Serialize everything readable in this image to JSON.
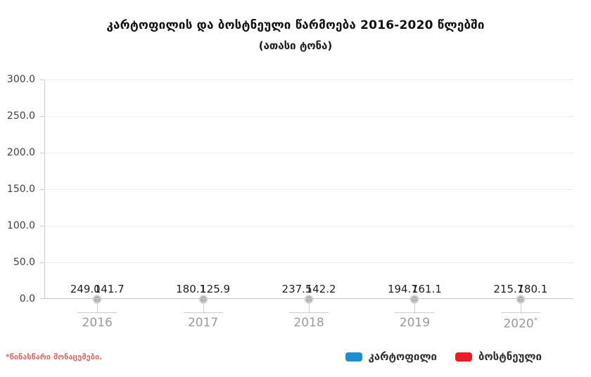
{
  "chart_data": {
    "type": "bar",
    "title": "კარტოფილის და ბოსტნეული წარმოება 2016-2020 წლებში",
    "subtitle": "(ათასი ტონა)",
    "categories": [
      "2016",
      "2017",
      "2018",
      "2019",
      "2020*"
    ],
    "series": [
      {
        "key": "potato",
        "name": "კარტოფილი",
        "color": "#1e8ecd",
        "values": [
          249.0,
          180.1,
          237.5,
          194.7,
          215.7
        ]
      },
      {
        "key": "vegetables",
        "name": "ბოსტნეული",
        "color": "#ec1c24",
        "values": [
          141.7,
          125.9,
          142.2,
          161.1,
          180.1
        ]
      }
    ],
    "ylim": [
      0,
      300
    ],
    "ytick_step": 50,
    "ytick_labels": [
      "300.0",
      "250.0",
      "200.0",
      "150.0",
      "100.0",
      "50.0",
      "0.0"
    ],
    "value_decimals": 1,
    "grid": true,
    "legend_position": "bottom-right",
    "footnote": "*წინასწარი მონაცემები."
  },
  "palette": {
    "bar_blue": "#1e8ecd",
    "bar_red": "#ec1c24",
    "gridline": "#ebebeb",
    "axis_line": "#c9cdd2",
    "x_axis_line": "#c8c8c8",
    "marker_dot": "#afafaf",
    "x_label_gray": "#9a9a9a",
    "y_label_gray": "#3f3f3f",
    "value_label": "#1f1f1f",
    "footnote_red": "#d46a6a",
    "background": "#ffffff"
  }
}
